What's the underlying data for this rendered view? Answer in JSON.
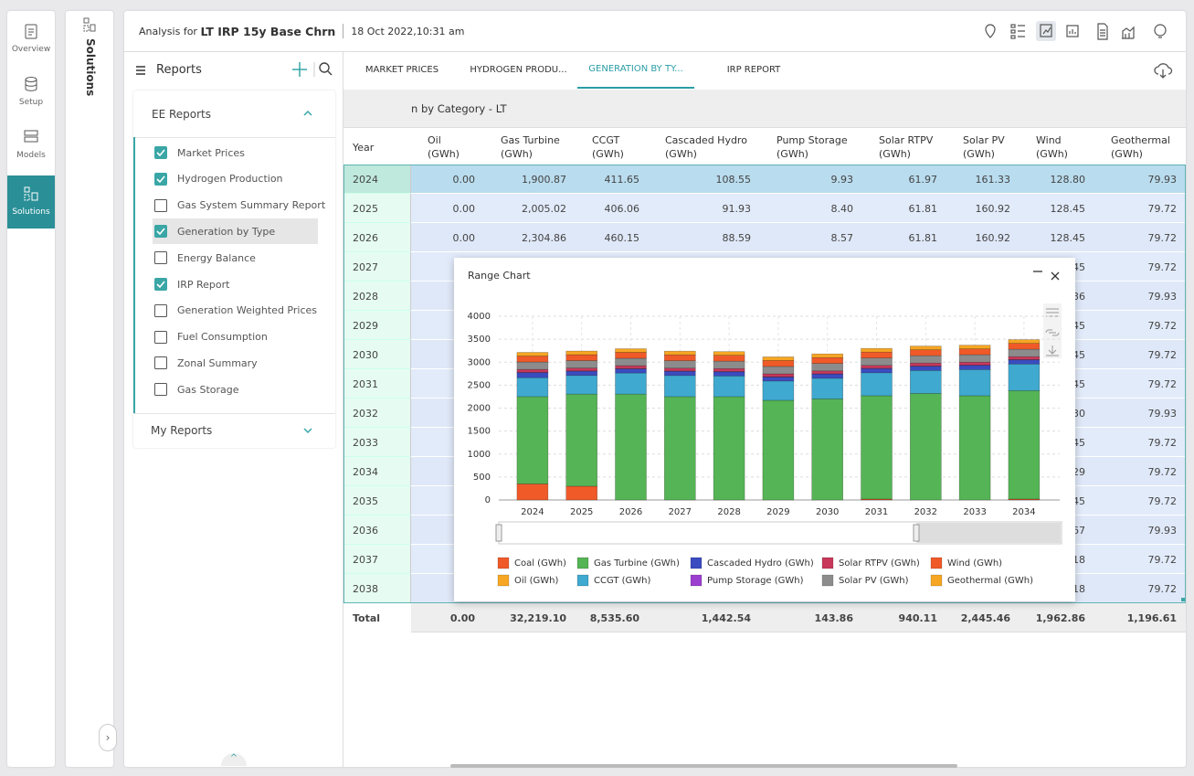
{
  "nav": {
    "items": [
      "Overview",
      "Setup",
      "Models",
      "Solutions"
    ],
    "active": 3
  },
  "side_title": "Solutions",
  "header": {
    "prefix": "Analysis for",
    "title": "LT IRP 15y Base Chrn",
    "date": "18 Oct 2022,10:31 am"
  },
  "reports": {
    "title": "Reports",
    "group": "EE Reports",
    "my_reports": "My Reports",
    "selected": 3,
    "items": [
      {
        "label": "Market Prices",
        "checked": true
      },
      {
        "label": "Hydrogen Production",
        "checked": true
      },
      {
        "label": "Gas System Summary Report",
        "checked": false
      },
      {
        "label": "Generation by Type",
        "checked": true
      },
      {
        "label": "Energy Balance",
        "checked": false
      },
      {
        "label": "IRP Report",
        "checked": true
      },
      {
        "label": "Generation Weighted Prices",
        "checked": false
      },
      {
        "label": "Fuel Consumption",
        "checked": false
      },
      {
        "label": "Zonal Summary",
        "checked": false
      },
      {
        "label": "Gas Storage",
        "checked": false
      }
    ]
  },
  "tabs": {
    "items": [
      "MARKET PRICES",
      "HYDROGEN PRODU...",
      "GENERATION BY TY...",
      "IRP REPORT"
    ],
    "active": 2
  },
  "table": {
    "caption": "n by Category - LT",
    "selected_row": 0,
    "columns": [
      {
        "name": "Year"
      },
      {
        "name": "Oil",
        "unit": "(GWh)"
      },
      {
        "name": "Gas Turbine",
        "unit": "(GWh)"
      },
      {
        "name": "CCGT",
        "unit": "(GWh)"
      },
      {
        "name": "Cascaded Hydro",
        "unit": "(GWh)"
      },
      {
        "name": "Pump Storage",
        "unit": "(GWh)"
      },
      {
        "name": "Solar RTPV",
        "unit": "(GWh)"
      },
      {
        "name": "Solar PV",
        "unit": "(GWh)"
      },
      {
        "name": "Wind",
        "unit": "(GWh)"
      },
      {
        "name": "Geothermal",
        "unit": "(GWh)"
      }
    ],
    "rows": [
      [
        "2024",
        "0.00",
        "1,900.87",
        "411.65",
        "108.55",
        "9.93",
        "61.97",
        "161.33",
        "128.80",
        "79.93"
      ],
      [
        "2025",
        "0.00",
        "2,005.02",
        "406.06",
        "91.93",
        "8.40",
        "61.81",
        "160.92",
        "128.45",
        "79.72"
      ],
      [
        "2026",
        "0.00",
        "2,304.86",
        "460.15",
        "88.59",
        "8.57",
        "61.81",
        "160.92",
        "128.45",
        "79.72"
      ],
      [
        "2027",
        null,
        null,
        null,
        null,
        null,
        null,
        null,
        "45",
        "79.72"
      ],
      [
        "2028",
        null,
        null,
        null,
        null,
        null,
        null,
        null,
        "36",
        "79.93"
      ],
      [
        "2029",
        null,
        null,
        null,
        null,
        null,
        null,
        null,
        "45",
        "79.72"
      ],
      [
        "2030",
        null,
        null,
        null,
        null,
        null,
        null,
        null,
        "45",
        "79.72"
      ],
      [
        "2031",
        null,
        null,
        null,
        null,
        null,
        null,
        null,
        "45",
        "79.72"
      ],
      [
        "2032",
        null,
        null,
        null,
        null,
        null,
        null,
        null,
        "30",
        "79.93"
      ],
      [
        "2033",
        null,
        null,
        null,
        null,
        null,
        null,
        null,
        "45",
        "79.72"
      ],
      [
        "2034",
        null,
        null,
        null,
        null,
        null,
        null,
        null,
        "29",
        "79.72"
      ],
      [
        "2035",
        null,
        null,
        null,
        null,
        null,
        null,
        null,
        "45",
        "79.72"
      ],
      [
        "2036",
        null,
        null,
        null,
        null,
        null,
        null,
        null,
        "67",
        "79.93"
      ],
      [
        "2037",
        null,
        null,
        null,
        null,
        null,
        null,
        null,
        "18",
        "79.72"
      ],
      [
        "2038",
        null,
        null,
        null,
        null,
        null,
        null,
        null,
        "18",
        "79.72"
      ]
    ],
    "total": [
      "Total",
      "0.00",
      "32,219.10",
      "8,535.60",
      "1,442.54",
      "143.86",
      "940.11",
      "2,445.46",
      "1,962.86",
      "1,196.61"
    ]
  },
  "chart_data": {
    "type": "stacked_bar",
    "title": "Range Chart",
    "categories": [
      "2024",
      "2025",
      "2026",
      "2027",
      "2028",
      "2029",
      "2030",
      "2031",
      "2032",
      "2033",
      "2034"
    ],
    "ylim": [
      0,
      4000
    ],
    "yticks": [
      0,
      500,
      1000,
      1500,
      2000,
      2500,
      3000,
      3500,
      4000
    ],
    "grid": true,
    "series": [
      {
        "name": "Coal (GWh)",
        "color": "#f05a28",
        "values": [
          350,
          300,
          0,
          0,
          0,
          0,
          0,
          20,
          0,
          0,
          20
        ]
      },
      {
        "name": "Oil (GWh)",
        "color": "#f6a623",
        "values": [
          0,
          0,
          0,
          0,
          0,
          0,
          0,
          0,
          0,
          0,
          0
        ]
      },
      {
        "name": "Gas Turbine (GWh)",
        "color": "#55b455",
        "values": [
          1900.87,
          2005.02,
          2304.86,
          2250,
          2250,
          2170,
          2200,
          2250,
          2320,
          2270,
          2360
        ]
      },
      {
        "name": "CCGT (GWh)",
        "color": "#3fa9cf",
        "values": [
          411.65,
          406.06,
          460.15,
          460,
          450,
          420,
          450,
          500,
          500,
          570,
          580
        ]
      },
      {
        "name": "Cascaded Hydro (GWh)",
        "color": "#3b4cc0",
        "values": [
          108.55,
          91.93,
          88.59,
          90,
          90,
          85,
          90,
          90,
          90,
          90,
          90
        ]
      },
      {
        "name": "Pump Storage (GWh)",
        "color": "#9b3fcf",
        "values": [
          9.93,
          8.4,
          8.57,
          9,
          9,
          9,
          9,
          9,
          9,
          9,
          9
        ]
      },
      {
        "name": "Solar RTPV (GWh)",
        "color": "#c8385a",
        "values": [
          61.97,
          61.81,
          61.81,
          62,
          62,
          62,
          62,
          62,
          62,
          62,
          62
        ]
      },
      {
        "name": "Solar PV (GWh)",
        "color": "#8c8c8c",
        "values": [
          161.33,
          160.92,
          160.92,
          161,
          161,
          161,
          161,
          161,
          161,
          161,
          161
        ]
      },
      {
        "name": "Wind (GWh)",
        "color": "#f05a28",
        "values": [
          128.8,
          128.45,
          128.45,
          128,
          128,
          128,
          128,
          128,
          128,
          128,
          128
        ]
      },
      {
        "name": "Geothermal (GWh)",
        "color": "#f6a623",
        "values": [
          79.93,
          79.72,
          79.72,
          80,
          80,
          80,
          80,
          80,
          80,
          80,
          80
        ]
      }
    ]
  }
}
